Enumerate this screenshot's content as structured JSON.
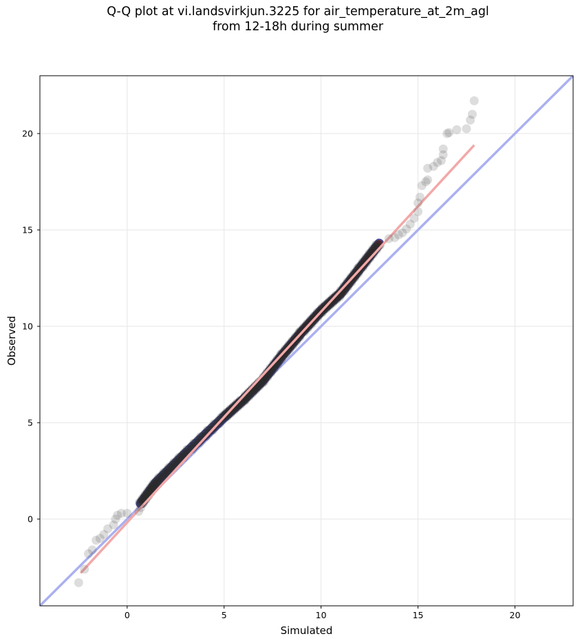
{
  "chart_data": {
    "type": "scatter",
    "title": "Q-Q plot at vi.landsvirkjun.3225 for air_temperature_at_2m_agl",
    "subtitle": "from 12-18h during summer",
    "xlabel": "Simulated",
    "ylabel": "Observed",
    "xlim": [
      -4.5,
      23.0
    ],
    "ylim": [
      -4.5,
      23.0
    ],
    "x_ticks": [
      0,
      5,
      10,
      15,
      20
    ],
    "y_ticks": [
      0,
      5,
      10,
      15,
      20
    ],
    "grid": true,
    "legend": "none",
    "colors": {
      "points": "#555555",
      "identity_line": "#aab0f0",
      "fit_line": "#f2a8a8",
      "dense_core_low": "#2a2f8a",
      "dense_core_high": "#8a2020"
    },
    "reference_lines": [
      {
        "role": "identity",
        "x": [
          -4.5,
          23.0
        ],
        "y": [
          -4.5,
          23.0
        ]
      },
      {
        "role": "fit",
        "x": [
          -2.4,
          17.9
        ],
        "y": [
          -2.8,
          19.4
        ]
      }
    ],
    "tail_points": [
      {
        "x": -2.5,
        "y": -3.3
      },
      {
        "x": -2.2,
        "y": -2.6
      },
      {
        "x": -2.0,
        "y": -1.8
      },
      {
        "x": -1.8,
        "y": -1.6
      },
      {
        "x": -1.6,
        "y": -1.1
      },
      {
        "x": -1.4,
        "y": -1.0
      },
      {
        "x": -1.2,
        "y": -0.8
      },
      {
        "x": -1.0,
        "y": -0.5
      },
      {
        "x": -0.7,
        "y": -0.3
      },
      {
        "x": -0.6,
        "y": 0.0
      },
      {
        "x": -0.5,
        "y": 0.2
      },
      {
        "x": -0.3,
        "y": 0.3
      },
      {
        "x": 0.0,
        "y": 0.3
      },
      {
        "x": 0.6,
        "y": 0.4
      },
      {
        "x": 0.7,
        "y": 0.6
      },
      {
        "x": 13.5,
        "y": 14.55
      },
      {
        "x": 13.8,
        "y": 14.6
      },
      {
        "x": 14.0,
        "y": 14.75
      },
      {
        "x": 14.2,
        "y": 14.85
      },
      {
        "x": 14.4,
        "y": 15.05
      },
      {
        "x": 14.6,
        "y": 15.3
      },
      {
        "x": 14.8,
        "y": 15.6
      },
      {
        "x": 15.0,
        "y": 15.95
      },
      {
        "x": 15.0,
        "y": 16.4
      },
      {
        "x": 15.1,
        "y": 16.7
      },
      {
        "x": 15.2,
        "y": 17.3
      },
      {
        "x": 15.4,
        "y": 17.5
      },
      {
        "x": 15.5,
        "y": 17.6
      },
      {
        "x": 15.5,
        "y": 18.2
      },
      {
        "x": 15.8,
        "y": 18.3
      },
      {
        "x": 16.0,
        "y": 18.5
      },
      {
        "x": 16.2,
        "y": 18.6
      },
      {
        "x": 16.3,
        "y": 18.9
      },
      {
        "x": 16.3,
        "y": 19.2
      },
      {
        "x": 16.5,
        "y": 20.0
      },
      {
        "x": 16.6,
        "y": 20.05
      },
      {
        "x": 17.0,
        "y": 20.2
      },
      {
        "x": 17.5,
        "y": 20.25
      },
      {
        "x": 17.7,
        "y": 20.7
      },
      {
        "x": 17.8,
        "y": 21.0
      },
      {
        "x": 17.9,
        "y": 21.7
      }
    ],
    "core_anchors": [
      {
        "x": 0.7,
        "y": 0.8
      },
      {
        "x": 1.5,
        "y": 1.9
      },
      {
        "x": 3.0,
        "y": 3.4
      },
      {
        "x": 5.0,
        "y": 5.3
      },
      {
        "x": 6.0,
        "y": 6.2
      },
      {
        "x": 7.0,
        "y": 7.2
      },
      {
        "x": 8.0,
        "y": 8.5
      },
      {
        "x": 9.0,
        "y": 9.7
      },
      {
        "x": 10.0,
        "y": 10.8
      },
      {
        "x": 11.0,
        "y": 11.7
      },
      {
        "x": 12.0,
        "y": 13.0
      },
      {
        "x": 13.0,
        "y": 14.3
      }
    ]
  }
}
